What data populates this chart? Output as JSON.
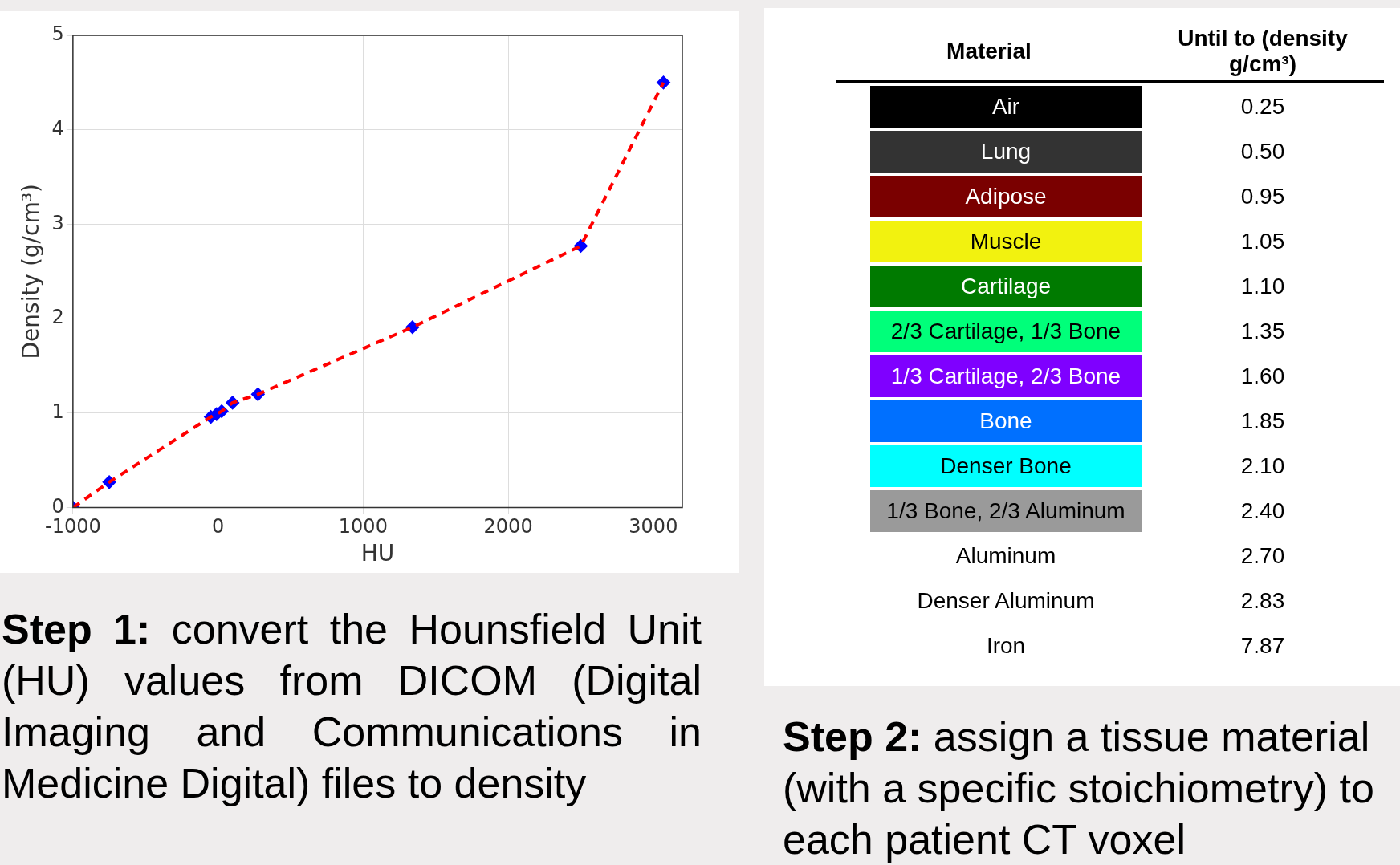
{
  "chart_data": [
    {
      "type": "line",
      "xlabel": "HU",
      "ylabel": "Density (g/cm³)",
      "xlim": [
        -1000,
        3200
      ],
      "xticks": [
        -1000,
        0,
        1000,
        2000,
        3000
      ],
      "ylim": [
        0,
        5
      ],
      "yticks": [
        0,
        1,
        2,
        3,
        4,
        5
      ],
      "grid": true,
      "x": [
        -1000,
        -750,
        -50,
        -10,
        25,
        100,
        275,
        1340,
        2500,
        3070
      ],
      "series": [
        {
          "type": "line",
          "color": "#ff0000",
          "line_style": "dashed",
          "marker": "none",
          "values": [
            0,
            0.27,
            0.96,
            0.99,
            1.02,
            1.11,
            1.2,
            1.91,
            2.77,
            4.5
          ]
        },
        {
          "type": "scatter",
          "color": "#0000ff",
          "marker": "diamond",
          "values": [
            0,
            0.27,
            0.96,
            0.99,
            1.02,
            1.11,
            1.2,
            1.91,
            2.77,
            4.5
          ]
        }
      ],
      "annotations": [
        "Step 1: convert the Hounsfield Unit (HU) values from DICOM (Digital Imaging and Communications in Medicine Digital)  files to density"
      ]
    },
    {
      "type": "other",
      "annotations": [
        "Material",
        "Until to (density g/cm³)",
        "Air",
        "0.25",
        "Lung",
        "0.50",
        "Adipose",
        "0.95",
        "Muscle",
        "1.05",
        "Cartilage",
        "1.10",
        "2/3 Cartilage, 1/3 Bone",
        "1.35",
        "1/3 Cartilage, 2/3 Bone",
        "1.60",
        "Bone",
        "1.85",
        "Denser Bone",
        "2.10",
        "1/3 Bone, 2/3 Aluminum",
        "2.40",
        "Aluminum",
        "2.70",
        "Denser Aluminum",
        "2.83",
        "Iron",
        "7.87",
        "Step 2: assign a tissue material (with a specific stoichiometry) to each patient CT voxel"
      ]
    }
  ]
}
